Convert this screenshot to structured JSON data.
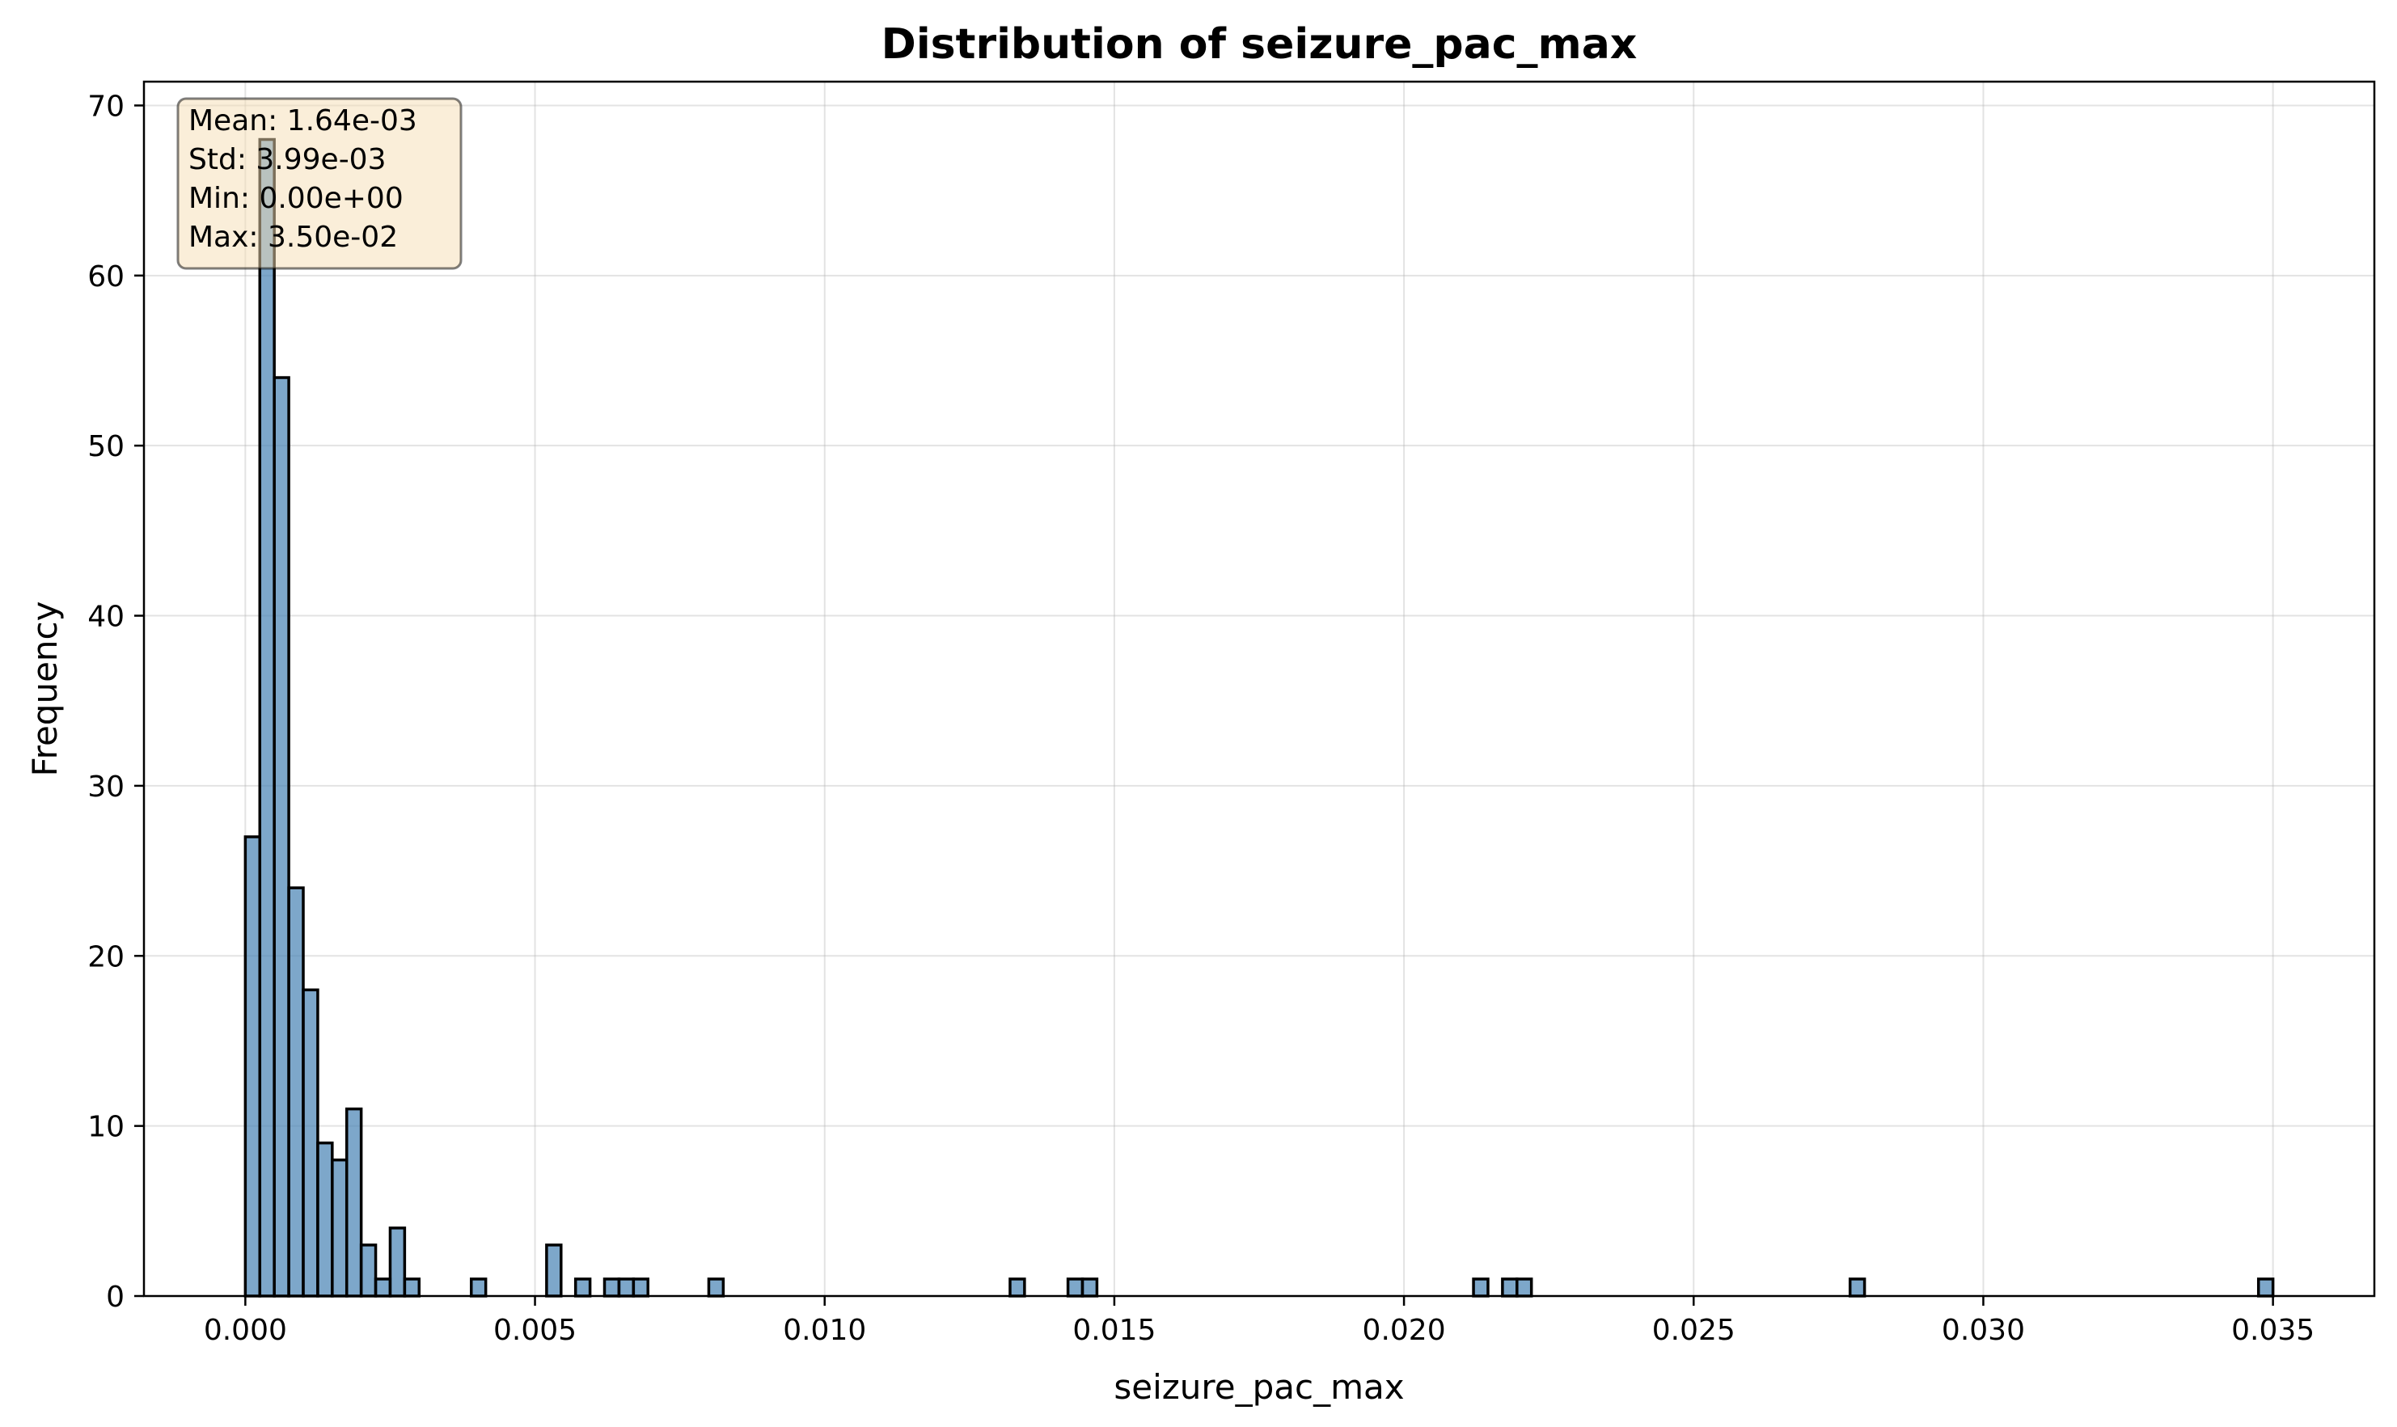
{
  "chart_data": {
    "type": "bar",
    "title": "Distribution of seizure_pac_max",
    "xlabel": "seizure_pac_max",
    "ylabel": "Frequency",
    "xlim": [
      -0.00175,
      0.03675
    ],
    "ylim": [
      0,
      71.4
    ],
    "x_ticks": [
      0.0,
      0.005,
      0.01,
      0.015,
      0.02,
      0.025,
      0.03,
      0.035
    ],
    "x_tick_labels": [
      "0.000",
      "0.005",
      "0.010",
      "0.015",
      "0.020",
      "0.025",
      "0.030",
      "0.035"
    ],
    "y_ticks": [
      0,
      10,
      20,
      30,
      40,
      50,
      60,
      70
    ],
    "y_tick_labels": [
      "0",
      "10",
      "20",
      "30",
      "40",
      "50",
      "60",
      "70"
    ],
    "grid": true,
    "bin_width": 0.00025,
    "bins": [
      {
        "x0": 0.0,
        "count": 27
      },
      {
        "x0": 0.00025,
        "count": 68
      },
      {
        "x0": 0.0005,
        "count": 54
      },
      {
        "x0": 0.00075,
        "count": 24
      },
      {
        "x0": 0.001,
        "count": 18
      },
      {
        "x0": 0.00125,
        "count": 9
      },
      {
        "x0": 0.0015,
        "count": 8
      },
      {
        "x0": 0.00175,
        "count": 11
      },
      {
        "x0": 0.002,
        "count": 3
      },
      {
        "x0": 0.00225,
        "count": 1
      },
      {
        "x0": 0.0025,
        "count": 4
      },
      {
        "x0": 0.00275,
        "count": 1
      },
      {
        "x0": 0.0039,
        "count": 1
      },
      {
        "x0": 0.0052,
        "count": 3
      },
      {
        "x0": 0.0057,
        "count": 1
      },
      {
        "x0": 0.0062,
        "count": 1
      },
      {
        "x0": 0.00645,
        "count": 1
      },
      {
        "x0": 0.0067,
        "count": 1
      },
      {
        "x0": 0.008,
        "count": 1
      },
      {
        "x0": 0.0132,
        "count": 1
      },
      {
        "x0": 0.0142,
        "count": 1
      },
      {
        "x0": 0.01445,
        "count": 1
      },
      {
        "x0": 0.0212,
        "count": 1
      },
      {
        "x0": 0.0217,
        "count": 1
      },
      {
        "x0": 0.02195,
        "count": 1
      },
      {
        "x0": 0.0277,
        "count": 1
      },
      {
        "x0": 0.03475,
        "count": 1
      }
    ],
    "stats_box": [
      "Mean: 1.64e-03",
      "Std: 3.99e-03",
      "Min: 0.00e+00",
      "Max: 3.50e-02"
    ]
  }
}
